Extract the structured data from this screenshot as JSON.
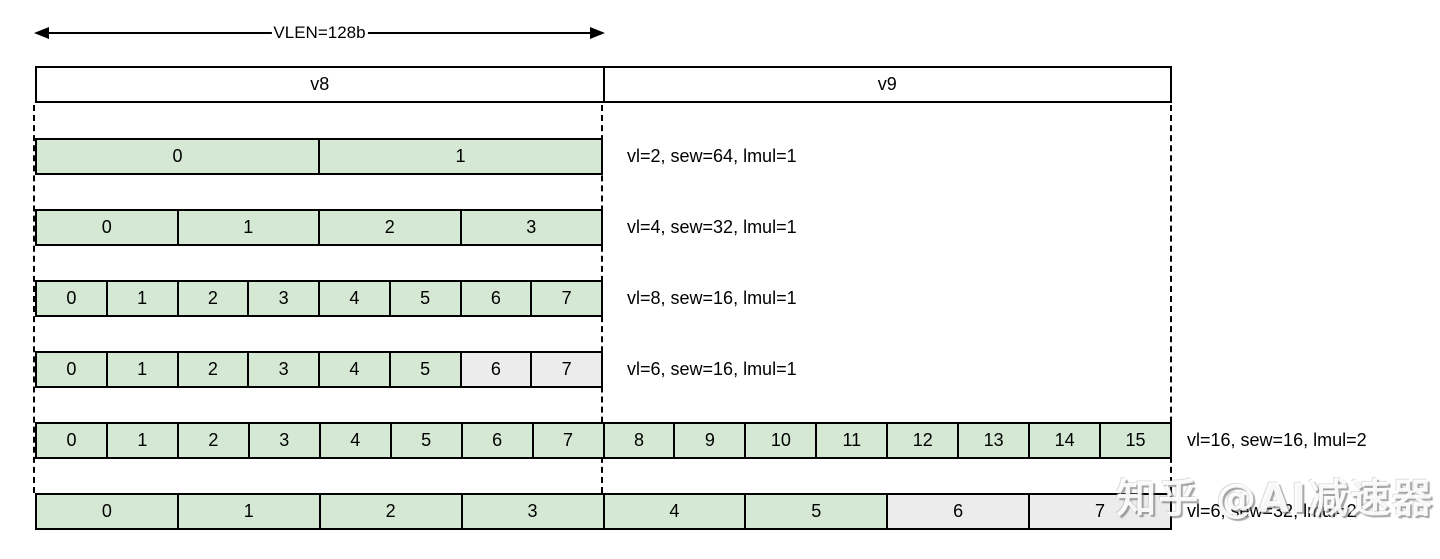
{
  "arrow": {
    "label": "VLEN=128b"
  },
  "header": {
    "v8": "v8",
    "v9": "v9"
  },
  "colors": {
    "active_fill": "#d5e8d4",
    "inactive_fill": "#ececec",
    "border": "#000000",
    "background": "#ffffff"
  },
  "rows": [
    {
      "label": "vl=2, sew=64, lmul=1",
      "register_span": "v8",
      "cells": [
        {
          "text": "0",
          "state": "active"
        },
        {
          "text": "1",
          "state": "active"
        }
      ]
    },
    {
      "label": "vl=4, sew=32, lmul=1",
      "register_span": "v8",
      "cells": [
        {
          "text": "0",
          "state": "active"
        },
        {
          "text": "1",
          "state": "active"
        },
        {
          "text": "2",
          "state": "active"
        },
        {
          "text": "3",
          "state": "active"
        }
      ]
    },
    {
      "label": "vl=8, sew=16, lmul=1",
      "register_span": "v8",
      "cells": [
        {
          "text": "0",
          "state": "active"
        },
        {
          "text": "1",
          "state": "active"
        },
        {
          "text": "2",
          "state": "active"
        },
        {
          "text": "3",
          "state": "active"
        },
        {
          "text": "4",
          "state": "active"
        },
        {
          "text": "5",
          "state": "active"
        },
        {
          "text": "6",
          "state": "active"
        },
        {
          "text": "7",
          "state": "active"
        }
      ]
    },
    {
      "label": "vl=6, sew=16, lmul=1",
      "register_span": "v8",
      "cells": [
        {
          "text": "0",
          "state": "active"
        },
        {
          "text": "1",
          "state": "active"
        },
        {
          "text": "2",
          "state": "active"
        },
        {
          "text": "3",
          "state": "active"
        },
        {
          "text": "4",
          "state": "active"
        },
        {
          "text": "5",
          "state": "active"
        },
        {
          "text": "6",
          "state": "inactive"
        },
        {
          "text": "7",
          "state": "inactive"
        }
      ]
    },
    {
      "label": "vl=16, sew=16, lmul=2",
      "register_span": "v8+v9",
      "cells": [
        {
          "text": "0",
          "state": "active"
        },
        {
          "text": "1",
          "state": "active"
        },
        {
          "text": "2",
          "state": "active"
        },
        {
          "text": "3",
          "state": "active"
        },
        {
          "text": "4",
          "state": "active"
        },
        {
          "text": "5",
          "state": "active"
        },
        {
          "text": "6",
          "state": "active"
        },
        {
          "text": "7",
          "state": "active"
        },
        {
          "text": "8",
          "state": "active"
        },
        {
          "text": "9",
          "state": "active"
        },
        {
          "text": "10",
          "state": "active"
        },
        {
          "text": "11",
          "state": "active"
        },
        {
          "text": "12",
          "state": "active"
        },
        {
          "text": "13",
          "state": "active"
        },
        {
          "text": "14",
          "state": "active"
        },
        {
          "text": "15",
          "state": "active"
        }
      ]
    },
    {
      "label": "vl=6, sew=32, lmul=2",
      "register_span": "v8+v9",
      "cells": [
        {
          "text": "0",
          "state": "active"
        },
        {
          "text": "1",
          "state": "active"
        },
        {
          "text": "2",
          "state": "active"
        },
        {
          "text": "3",
          "state": "active"
        },
        {
          "text": "4",
          "state": "active"
        },
        {
          "text": "5",
          "state": "active"
        },
        {
          "text": "6",
          "state": "inactive"
        },
        {
          "text": "7",
          "state": "inactive"
        }
      ]
    }
  ],
  "watermark": {
    "text": "知乎 @AI减速器"
  }
}
